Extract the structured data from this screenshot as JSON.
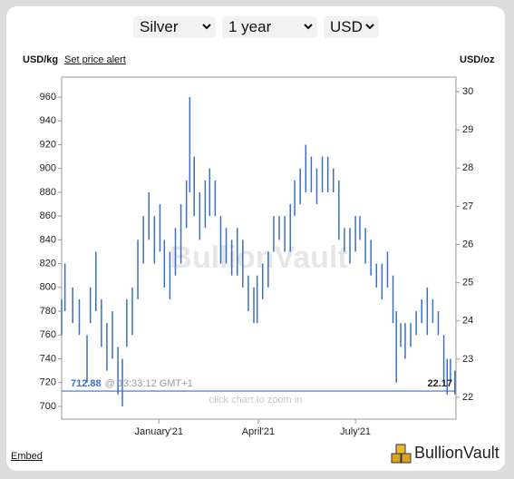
{
  "controls": {
    "metal": "Silver",
    "period": "1 year",
    "currency": "USD",
    "price_alert": "Set price alert"
  },
  "footer": {
    "embed": "Embed",
    "brand": "BullionVault"
  },
  "chart_data": {
    "type": "hilo",
    "y_label": "USD/kg",
    "y2_label": "USD/oz",
    "watermark": "BullionVault",
    "zoom_hint": "click chart to zoom in",
    "current_price": 712.88,
    "current_time": "@ 13:33:12 GMT+1",
    "current_price_oz": 22.17,
    "color": "#3a6fc4",
    "x": [
      0,
      3,
      10,
      16,
      23,
      26,
      31,
      36,
      41,
      46,
      51,
      55,
      59,
      64,
      69,
      74,
      79,
      84,
      89,
      93,
      98,
      103,
      108,
      113,
      116,
      120,
      125,
      130,
      134,
      139,
      144,
      149,
      154,
      159,
      164,
      169,
      174,
      177,
      182,
      187,
      192,
      197,
      202,
      207,
      211,
      216,
      221,
      226,
      231,
      236,
      241,
      246,
      251,
      256,
      261,
      266,
      270,
      275,
      280,
      285,
      290,
      295,
      300,
      303,
      307,
      311,
      316,
      321,
      326,
      331,
      336,
      341,
      346,
      349,
      352,
      356
    ],
    "low": [
      760,
      780,
      770,
      760,
      720,
      770,
      780,
      750,
      730,
      740,
      710,
      700,
      750,
      760,
      790,
      820,
      840,
      820,
      830,
      800,
      790,
      810,
      820,
      850,
      880,
      860,
      840,
      850,
      860,
      860,
      820,
      820,
      810,
      810,
      800,
      780,
      770,
      770,
      790,
      800,
      830,
      840,
      830,
      830,
      860,
      870,
      880,
      880,
      870,
      880,
      880,
      880,
      840,
      830,
      820,
      830,
      840,
      820,
      810,
      800,
      790,
      800,
      770,
      720,
      750,
      740,
      750,
      760,
      770,
      760,
      770,
      760,
      720,
      710,
      720,
      710
    ],
    "high": [
      790,
      820,
      800,
      790,
      760,
      800,
      830,
      790,
      770,
      780,
      750,
      740,
      790,
      800,
      840,
      860,
      880,
      860,
      870,
      840,
      830,
      850,
      870,
      890,
      960,
      910,
      880,
      890,
      900,
      890,
      860,
      850,
      840,
      850,
      840,
      810,
      800,
      810,
      820,
      830,
      860,
      860,
      860,
      870,
      890,
      900,
      920,
      910,
      900,
      910,
      910,
      900,
      890,
      850,
      850,
      860,
      860,
      850,
      840,
      820,
      820,
      830,
      810,
      780,
      770,
      770,
      770,
      780,
      790,
      800,
      790,
      780,
      760,
      740,
      740,
      730
    ],
    "xlim": [
      0,
      357
    ],
    "xticks": [
      {
        "value": 88,
        "label": "January'21"
      },
      {
        "value": 178,
        "label": "April'21"
      },
      {
        "value": 266,
        "label": "July'21"
      }
    ],
    "ylim": [
      689.3,
      976.8
    ],
    "yticks": [
      700,
      720,
      740,
      760,
      780,
      800,
      820,
      840,
      860,
      880,
      900,
      920,
      940,
      960
    ],
    "y2lim": [
      21.43,
      30.38
    ],
    "y2ticks": [
      22,
      23,
      24,
      25,
      26,
      27,
      28,
      29,
      30
    ]
  }
}
